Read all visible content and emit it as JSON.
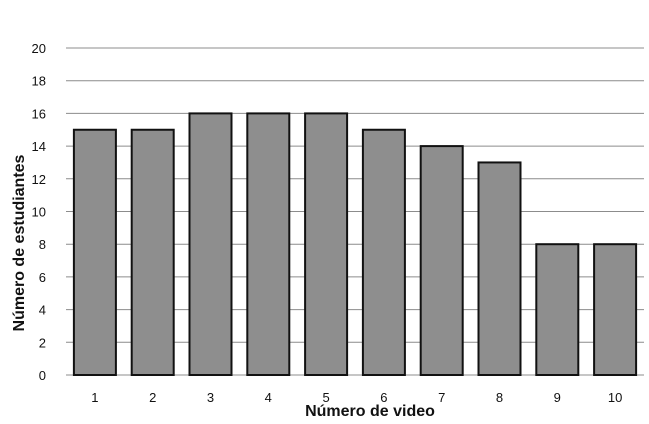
{
  "chart_data": {
    "type": "bar",
    "categories": [
      "1",
      "2",
      "3",
      "4",
      "5",
      "6",
      "7",
      "8",
      "9",
      "10"
    ],
    "values": [
      15,
      15,
      16,
      16,
      16,
      15,
      14,
      13,
      8,
      8
    ],
    "xlabel": "Número de video",
    "ylabel": "Número de estudiantes",
    "ylim": [
      0,
      20
    ],
    "yticks": [
      "0",
      "2",
      "4",
      "6",
      "8",
      "10",
      "12",
      "14",
      "16",
      "18",
      "20"
    ],
    "grid": true,
    "legend": false,
    "colors": {
      "bar_fill": "#8e8e8e",
      "bar_stroke": "#111111",
      "grid": "#8c8c8c"
    }
  }
}
